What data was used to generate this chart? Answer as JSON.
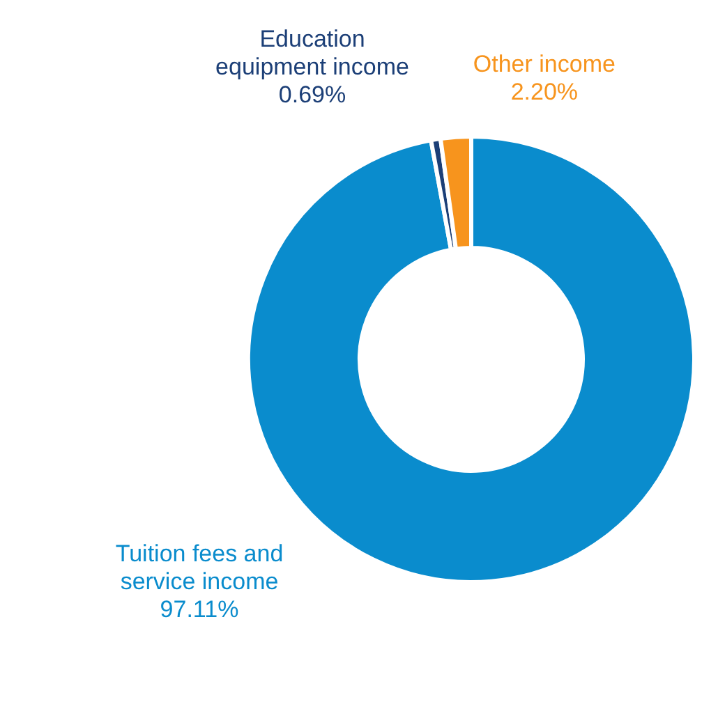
{
  "chart_data": {
    "type": "donut",
    "categories": [
      "Tuition fees and service income",
      "Education equipment income",
      "Other income"
    ],
    "values": [
      97.11,
      0.69,
      2.2
    ],
    "value_labels": [
      "97.11%",
      "0.69%",
      "2.20%"
    ],
    "colors": [
      "#0a8ccd",
      "#1c3f77",
      "#f7941d"
    ]
  }
}
